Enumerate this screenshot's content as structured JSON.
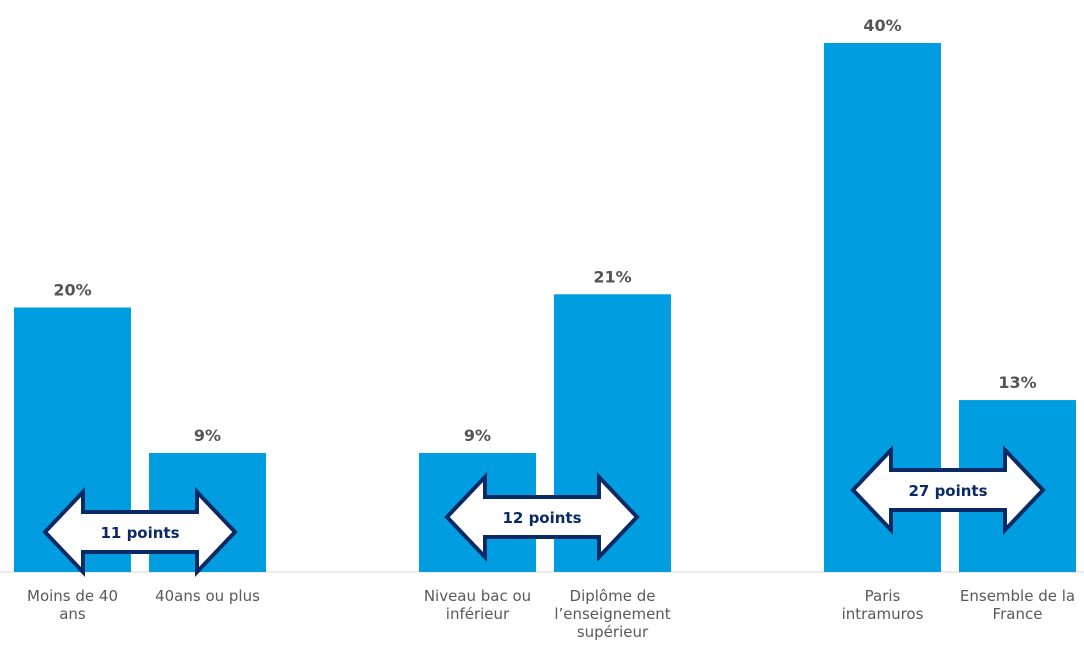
{
  "chart_data": {
    "type": "bar",
    "categories": [
      [
        "Moins de 40",
        "ans"
      ],
      [
        "40ans ou plus"
      ],
      [
        "Niveau bac ou",
        "inférieur"
      ],
      [
        "Diplôme de",
        "l’enseignement",
        "supérieur"
      ],
      [
        "Paris",
        "intramuros"
      ],
      [
        "Ensemble de la",
        "France"
      ]
    ],
    "values": [
      20,
      9,
      9,
      21,
      40,
      13
    ],
    "value_labels": [
      "20%",
      "9%",
      "9%",
      "21%",
      "40%",
      "13%"
    ],
    "groups": [
      [
        0,
        1
      ],
      [
        2,
        3
      ],
      [
        4,
        5
      ]
    ],
    "annotations": [
      "11 points",
      "12 points",
      "27 points"
    ],
    "ylim": [
      0,
      40
    ],
    "bar_color": "#009ee0",
    "arrow_fill": "#ffffff",
    "arrow_stroke": "#0a2a66",
    "grid": false,
    "legend": "none"
  }
}
